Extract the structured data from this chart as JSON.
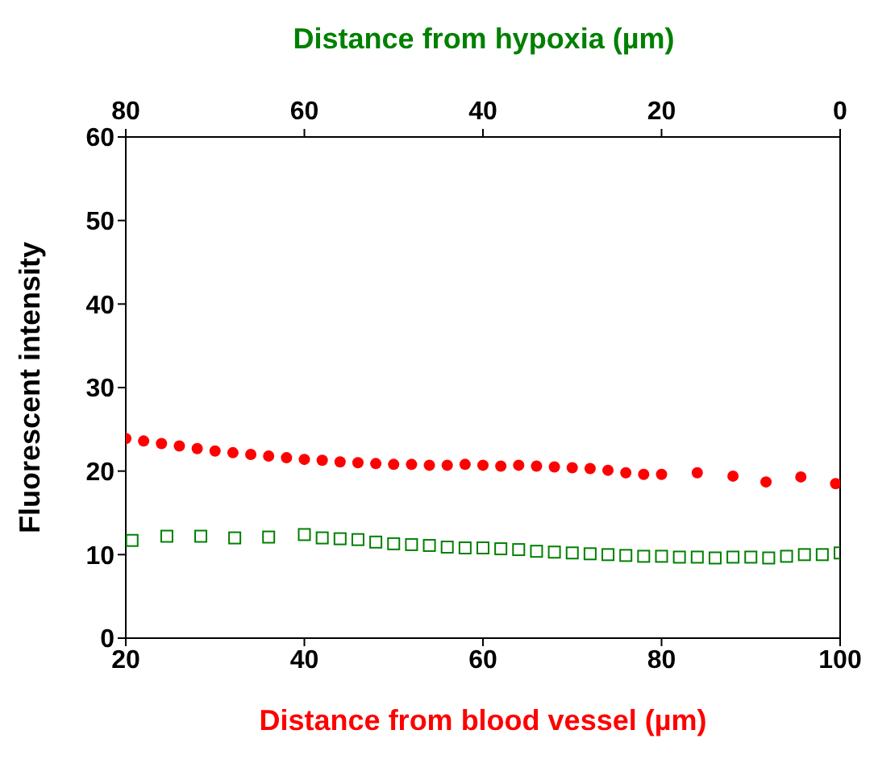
{
  "chart_data": {
    "type": "scatter",
    "xlabel": "Distance from blood vessel (µm)",
    "x2label": "Distance from hypoxia (µm)",
    "ylabel": "Fluorescent intensity",
    "xlim": [
      20,
      100
    ],
    "xticks": [
      20,
      40,
      60,
      80,
      100
    ],
    "x2lim": [
      80,
      0
    ],
    "x2ticks": [
      80,
      60,
      40,
      20,
      0
    ],
    "ylim": [
      0,
      60
    ],
    "yticks": [
      0,
      10,
      20,
      30,
      40,
      50,
      60
    ],
    "legend": false,
    "series": [
      {
        "color": "#ff0000",
        "marker": "circle",
        "x": [
          20,
          22,
          24,
          26,
          28,
          30,
          32,
          34,
          36,
          38,
          40,
          42,
          44,
          46,
          48,
          50,
          52,
          54,
          56,
          58,
          60,
          62,
          64,
          66,
          68,
          70,
          72,
          74,
          76,
          78,
          80,
          84,
          88,
          91.7,
          95.6,
          99.5
        ],
        "values": [
          23.9,
          23.6,
          23.3,
          23.0,
          22.7,
          22.4,
          22.2,
          22.0,
          21.8,
          21.6,
          21.4,
          21.3,
          21.1,
          21.0,
          20.9,
          20.8,
          20.8,
          20.7,
          20.7,
          20.8,
          20.7,
          20.6,
          20.7,
          20.6,
          20.5,
          20.4,
          20.3,
          20.1,
          19.8,
          19.6,
          19.6,
          19.8,
          19.4,
          18.7,
          19.3,
          18.5
        ]
      },
      {
        "color": "#008000",
        "marker": "square",
        "x": [
          20.7,
          24.6,
          28.4,
          32.2,
          36,
          40,
          42,
          44,
          46,
          48,
          50,
          52,
          54,
          56,
          58,
          60,
          62,
          64,
          66,
          68,
          70,
          72,
          74,
          76,
          78,
          80,
          82,
          84,
          86,
          88,
          90,
          92,
          94,
          96,
          98,
          100
        ],
        "values": [
          11.7,
          12.2,
          12.2,
          12.0,
          12.1,
          12.4,
          12.0,
          11.9,
          11.8,
          11.5,
          11.3,
          11.2,
          11.1,
          10.9,
          10.8,
          10.8,
          10.7,
          10.6,
          10.4,
          10.3,
          10.2,
          10.1,
          10.0,
          9.9,
          9.8,
          9.8,
          9.7,
          9.7,
          9.6,
          9.7,
          9.7,
          9.6,
          9.8,
          10.0,
          10.0,
          10.2
        ]
      }
    ]
  }
}
